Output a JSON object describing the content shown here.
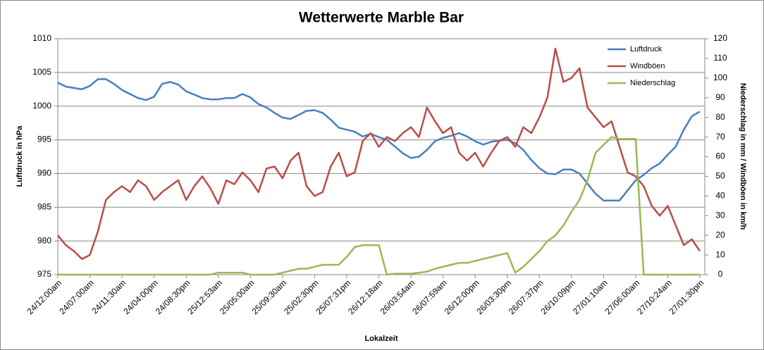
{
  "chart_data": {
    "type": "line",
    "title": "Wetterwerte Marble Bar",
    "xlabel": "Lokalzeit",
    "ylabel": "Luftdruck in hPa",
    "y2label": "Niederschlag in mm / Windböen in km/h",
    "categories": [
      "24/12:00am",
      null,
      null,
      null,
      "24/07:00am",
      null,
      null,
      null,
      "24/11:30am",
      null,
      null,
      null,
      "24/04:00pm",
      null,
      null,
      null,
      "24/08:30pm",
      null,
      null,
      null,
      "25/12:53am",
      null,
      null,
      null,
      "25/05:00am",
      null,
      null,
      null,
      "25/09:30am",
      null,
      null,
      null,
      "25/02:30pm",
      null,
      null,
      null,
      "25/07:31pm",
      null,
      null,
      null,
      "26/12:18am",
      null,
      null,
      null,
      "26/03:54am",
      null,
      null,
      null,
      "26/07:59am",
      null,
      null,
      null,
      "26/12:00pm",
      null,
      null,
      null,
      "26/03:30pm",
      null,
      null,
      null,
      "26/07:37pm",
      null,
      null,
      null,
      "26/10:09pm",
      null,
      null,
      null,
      "27/01:10am",
      null,
      null,
      null,
      "27/06:00am",
      null,
      null,
      null,
      "27/10:24am",
      null,
      null,
      null,
      "27/01:30pm"
    ],
    "series": [
      {
        "name": "Luftdruck",
        "color": "#4a7ebb",
        "axis": "y",
        "values": [
          1003.5,
          1002.9,
          1002.7,
          1002.5,
          1003.0,
          1004.0,
          1004.0,
          1003.3,
          1002.4,
          1001.8,
          1001.2,
          1000.9,
          1001.4,
          1003.3,
          1003.6,
          1003.2,
          1002.2,
          1001.7,
          1001.2,
          1001.0,
          1001.0,
          1001.2,
          1001.2,
          1001.8,
          1001.3,
          1000.3,
          999.8,
          999.0,
          998.3,
          998.1,
          998.7,
          999.3,
          999.4,
          999.0,
          998.0,
          996.8,
          996.5,
          996.2,
          995.5,
          995.9,
          995.4,
          995.0,
          994.0,
          993.0,
          992.3,
          992.5,
          993.5,
          994.8,
          995.3,
          995.6,
          996.0,
          995.5,
          994.8,
          994.3,
          994.7,
          994.9,
          995.0,
          994.5,
          993.5,
          992.0,
          990.8,
          990.0,
          989.9,
          990.6,
          990.6,
          990.0,
          988.5,
          987.0,
          986.0,
          986.0,
          986.0,
          987.5,
          989.0,
          989.8,
          990.8,
          991.5,
          992.8,
          994.0,
          996.5,
          998.5,
          999.2
        ]
      },
      {
        "name": "Windböen",
        "color": "#be4b48",
        "axis": "y2",
        "values": [
          20,
          15,
          12,
          8,
          10,
          22,
          38,
          42,
          45,
          42,
          48,
          45,
          38,
          42,
          45,
          48,
          38,
          45,
          50,
          44,
          36,
          48,
          46,
          52,
          48,
          42,
          54,
          55,
          49,
          58,
          62,
          45,
          40,
          42,
          55,
          62,
          50,
          52,
          68,
          72,
          65,
          70,
          68,
          72,
          75,
          70,
          85,
          78,
          72,
          75,
          62,
          58,
          62,
          55,
          62,
          68,
          70,
          65,
          75,
          72,
          80,
          90,
          115,
          98,
          100,
          105,
          85,
          80,
          75,
          78,
          65,
          52,
          50,
          45,
          35,
          30,
          35,
          25,
          15,
          18,
          12
        ]
      },
      {
        "name": "Niederschlag",
        "color": "#98b954",
        "axis": "y2",
        "values": [
          0,
          0,
          0,
          0,
          0,
          0,
          0,
          0,
          0,
          0,
          0,
          0,
          0,
          0,
          0,
          0,
          0,
          0,
          0,
          0,
          1,
          1,
          1,
          1,
          0,
          0,
          0,
          0,
          1,
          2,
          3,
          3,
          4,
          5,
          5,
          5,
          9,
          14,
          15,
          15,
          15,
          0,
          0.5,
          0.5,
          0.5,
          1,
          1.5,
          3,
          4,
          5,
          6,
          6,
          7,
          8,
          9,
          10,
          11,
          1,
          4,
          8,
          12,
          17,
          20,
          25,
          32,
          38,
          48,
          62,
          66,
          70,
          69,
          69,
          69,
          0,
          0,
          0,
          0,
          0,
          0,
          0,
          0
        ]
      }
    ],
    "ylim": [
      975,
      1010
    ],
    "yticks": [
      975,
      980,
      985,
      990,
      995,
      1000,
      1005,
      1010
    ],
    "y2lim": [
      0,
      120
    ],
    "y2ticks": [
      0,
      10,
      20,
      30,
      40,
      50,
      60,
      70,
      80,
      90,
      100,
      110,
      120
    ],
    "grid": true,
    "legend": "top-right"
  }
}
